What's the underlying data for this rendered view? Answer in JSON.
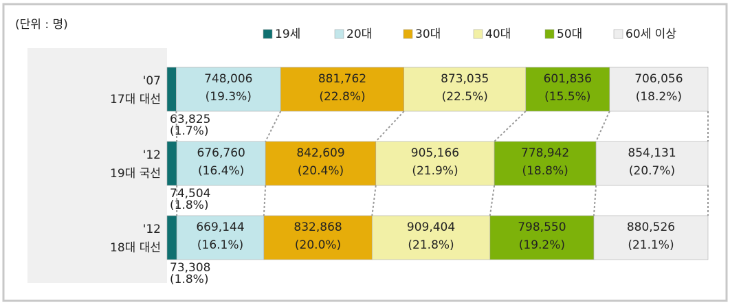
{
  "chart_data": {
    "type": "bar100",
    "unit_label": "(단위 : 명)",
    "categories": [
      [
        "'07",
        "17대 대선"
      ],
      [
        "'12",
        "19대 국선"
      ],
      [
        "'12",
        "18대 대선"
      ]
    ],
    "series": [
      {
        "name": "19세",
        "color": "#0f7070",
        "counts": [
          63825,
          74504,
          73308
        ],
        "count_labels": [
          "63,825",
          "74,504",
          "73,308"
        ],
        "values": [
          1.7,
          1.8,
          1.8
        ],
        "value_labels": [
          "(1.7%)",
          "(1.8%)",
          "(1.8%)"
        ]
      },
      {
        "name": "20대",
        "color": "#c2e6ea",
        "counts": [
          748006,
          676760,
          669144
        ],
        "count_labels": [
          "748,006",
          "676,760",
          "669,144"
        ],
        "values": [
          19.3,
          16.4,
          16.1
        ],
        "value_labels": [
          "(19.3%)",
          "(16.4%)",
          "(16.1%)"
        ]
      },
      {
        "name": "30대",
        "color": "#e6ad0a",
        "counts": [
          881762,
          842609,
          832868
        ],
        "count_labels": [
          "881,762",
          "842,609",
          "832,868"
        ],
        "values": [
          22.8,
          20.4,
          20.0
        ],
        "value_labels": [
          "(22.8%)",
          "(20.4%)",
          "(20.0%)"
        ]
      },
      {
        "name": "40대",
        "color": "#f2f0a6",
        "counts": [
          873035,
          905166,
          909404
        ],
        "count_labels": [
          "873,035",
          "905,166",
          "909,404"
        ],
        "values": [
          22.5,
          21.9,
          21.8
        ],
        "value_labels": [
          "(22.5%)",
          "(21.9%)",
          "(21.8%)"
        ]
      },
      {
        "name": "50대",
        "color": "#7db20a",
        "counts": [
          601836,
          778942,
          798550
        ],
        "count_labels": [
          "601,836",
          "778,942",
          "798,550"
        ],
        "values": [
          15.5,
          18.8,
          19.2
        ],
        "value_labels": [
          "(15.5%)",
          "(18.8%)",
          "(19.2%)"
        ]
      },
      {
        "name": "60세 이상",
        "color": "#eeeeee",
        "counts": [
          706056,
          854131,
          880526
        ],
        "count_labels": [
          "706,056",
          "854,131",
          "880,526"
        ],
        "values": [
          18.2,
          20.7,
          21.1
        ],
        "value_labels": [
          "(18.2%)",
          "(20.7%)",
          "(21.1%)"
        ]
      }
    ]
  }
}
